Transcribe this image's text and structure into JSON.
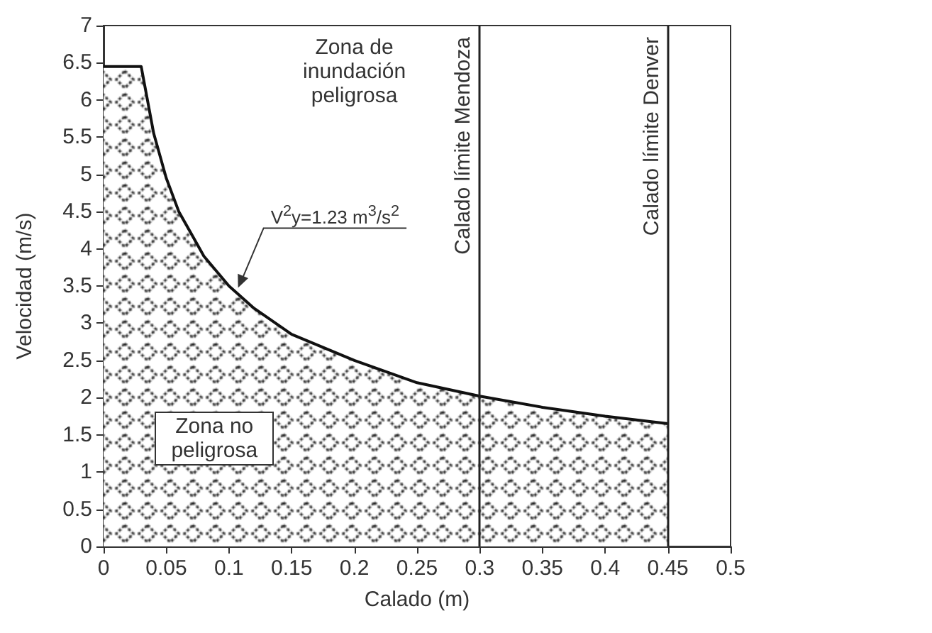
{
  "chart_data": {
    "type": "area",
    "xlabel": "Calado (m)",
    "ylabel": "Velocidad (m/s)",
    "series": [
      {
        "color": "#111111",
        "x": [
          0,
          0.03,
          0.04,
          0.05,
          0.06,
          0.07,
          0.08,
          0.1,
          0.12,
          0.15,
          0.2,
          0.25,
          0.3,
          0.35,
          0.4,
          0.45
        ],
        "values": [
          6.45,
          6.45,
          5.55,
          4.95,
          4.5,
          4.2,
          3.9,
          3.5,
          3.2,
          2.85,
          2.5,
          2.2,
          2.02,
          1.87,
          1.75,
          1.65
        ]
      }
    ],
    "xlim": [
      0,
      0.5
    ],
    "xticks": [
      0,
      0.05,
      0.1,
      0.15,
      0.2,
      0.25,
      0.3,
      0.35,
      0.4,
      0.45,
      0.5
    ],
    "ylim": [
      0,
      7
    ],
    "yticks": [
      0,
      0.5,
      1,
      1.5,
      2,
      2.5,
      3,
      3.5,
      4,
      4.5,
      5,
      5.5,
      6,
      6.5,
      7
    ],
    "ref_lines": [
      {
        "axis": "x",
        "value": 0.3,
        "label": "Calado límite Mendoza",
        "color": "#222222"
      },
      {
        "axis": "x",
        "value": 0.45,
        "label": "Calado límite Denver",
        "color": "#222222"
      }
    ],
    "annotations": [
      "Zona de inundación peligrosa",
      "Zona no peligrosa",
      {
        "text": "V$^{2}$y=1.23 m$^{3}$/s$^{2}$",
        "x": 0.105,
        "y": 3.42
      }
    ],
    "grid": false,
    "marker": "none",
    "line_style": "solid"
  }
}
